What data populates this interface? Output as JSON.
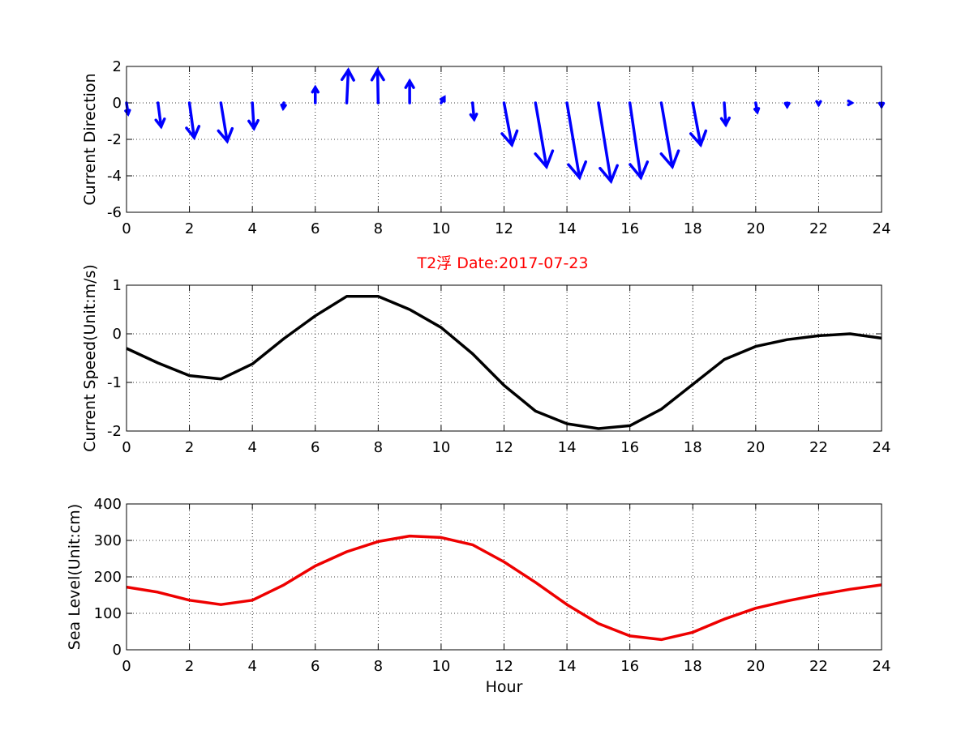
{
  "figure": {
    "title": "T2浮   Date:2017-07-23",
    "title_color": "#ff0000"
  },
  "chart_data": [
    {
      "type": "quiver",
      "name": "current-direction",
      "ylabel": "Current Direction",
      "xlabel": "",
      "xlim": [
        0,
        24
      ],
      "ylim": [
        -6,
        2
      ],
      "xticks": [
        "0",
        "2",
        "4",
        "6",
        "8",
        "10",
        "12",
        "14",
        "16",
        "18",
        "20",
        "22",
        "24"
      ],
      "yticks": [
        "2",
        "0",
        "-2",
        "-4",
        "-6"
      ],
      "grid": true,
      "color": "#0000ff",
      "x": [
        0,
        1,
        2,
        3,
        4,
        5,
        6,
        7,
        8,
        9,
        10,
        11,
        12,
        13,
        14,
        15,
        16,
        17,
        18,
        19,
        20,
        21,
        22,
        23,
        24
      ],
      "u": [
        0.05,
        0.1,
        0.15,
        0.2,
        0.05,
        -0.02,
        0.0,
        0.05,
        -0.02,
        0.0,
        0.1,
        0.05,
        0.25,
        0.35,
        0.4,
        0.4,
        0.35,
        0.35,
        0.25,
        0.05,
        0.05,
        0.0,
        0.0,
        0.05,
        0.0
      ],
      "v": [
        -0.6,
        -1.3,
        -1.9,
        -2.1,
        -1.4,
        -0.3,
        0.85,
        1.8,
        1.8,
        1.2,
        0.3,
        -0.9,
        -2.3,
        -3.5,
        -4.1,
        -4.3,
        -4.1,
        -3.5,
        -2.3,
        -1.2,
        -0.5,
        -0.2,
        -0.1,
        0.0,
        -0.2
      ]
    },
    {
      "type": "line",
      "name": "current-speed",
      "ylabel": "Current Speed(Unit:m/s)",
      "xlabel": "",
      "xlim": [
        0,
        24
      ],
      "ylim": [
        -2,
        1
      ],
      "xticks": [
        "0",
        "2",
        "4",
        "6",
        "8",
        "10",
        "12",
        "14",
        "16",
        "18",
        "20",
        "22",
        "24"
      ],
      "yticks": [
        "1",
        "0",
        "-1",
        "-2"
      ],
      "grid": true,
      "color": "#000000",
      "x": [
        0,
        1,
        2,
        3,
        4,
        5,
        6,
        7,
        8,
        9,
        10,
        11,
        12,
        13,
        14,
        15,
        16,
        17,
        18,
        19,
        20,
        21,
        22,
        23,
        24
      ],
      "y": [
        -0.3,
        -0.6,
        -0.86,
        -0.93,
        -0.62,
        -0.1,
        0.37,
        0.77,
        0.77,
        0.5,
        0.13,
        -0.41,
        -1.06,
        -1.59,
        -1.85,
        -1.95,
        -1.89,
        -1.55,
        -1.04,
        -0.53,
        -0.26,
        -0.12,
        -0.04,
        0.0,
        -0.09
      ]
    },
    {
      "type": "line",
      "name": "sea-level",
      "ylabel": "Sea Level(Unit:cm)",
      "xlabel": "Hour",
      "xlim": [
        0,
        24
      ],
      "ylim": [
        0,
        400
      ],
      "xticks": [
        "0",
        "2",
        "4",
        "6",
        "8",
        "10",
        "12",
        "14",
        "16",
        "18",
        "20",
        "22",
        "24"
      ],
      "yticks": [
        "400",
        "300",
        "200",
        "100",
        "0"
      ],
      "grid": true,
      "color": "#ee0000",
      "x": [
        0,
        1,
        2,
        3,
        4,
        5,
        6,
        7,
        8,
        9,
        10,
        11,
        12,
        13,
        14,
        15,
        16,
        17,
        18,
        19,
        20,
        21,
        22,
        23,
        24
      ],
      "y": [
        172,
        158,
        136,
        124,
        136,
        178,
        230,
        269,
        297,
        312,
        308,
        288,
        241,
        185,
        124,
        72,
        38,
        28,
        48,
        84,
        114,
        134,
        151,
        166,
        178
      ]
    }
  ]
}
